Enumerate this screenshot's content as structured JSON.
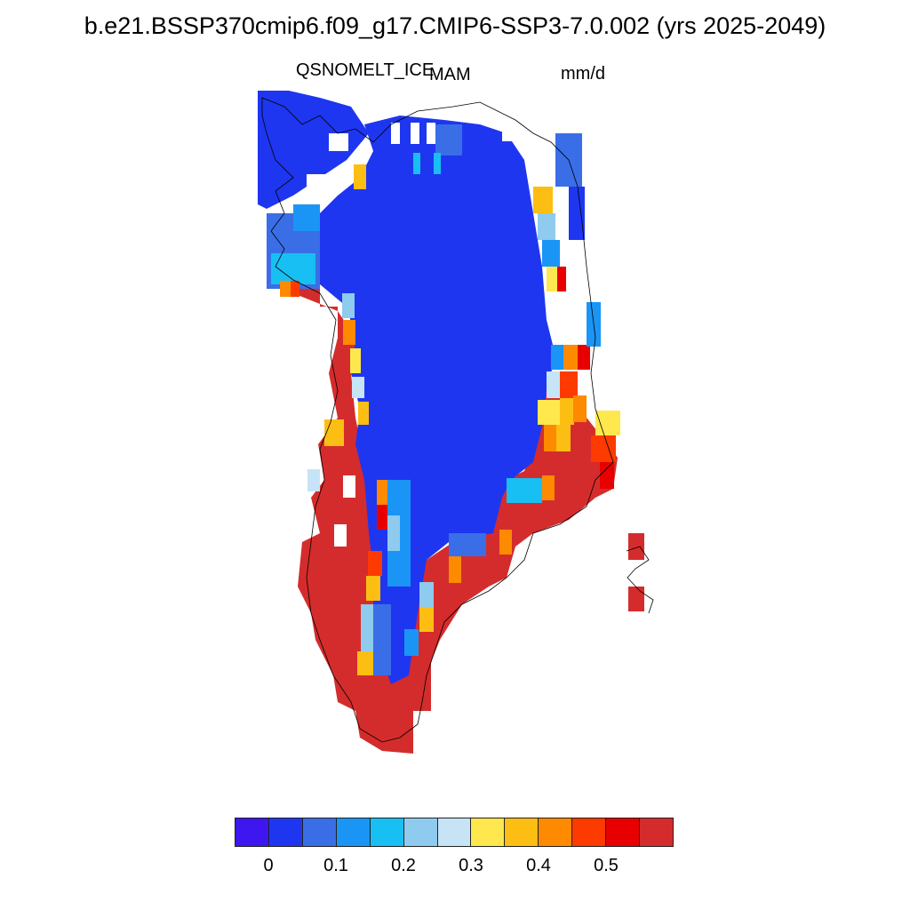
{
  "title": "b.e21.BSSP370cmip6.f09_g17.CMIP6-SSP3-7.0.002 (yrs 2025-2049)",
  "variable": "QSNOMELT_ICE",
  "season": "MAM",
  "units": "mm/d",
  "colorbar": {
    "colors": [
      "#3d16f0",
      "#1f36f0",
      "#3a6ee6",
      "#1a95f5",
      "#18bff2",
      "#8ecbee",
      "#c6e4f5",
      "#ffe84d",
      "#fdbe13",
      "#fd8a00",
      "#fd3a00",
      "#e80000",
      "#d42c2c"
    ],
    "tick_labels": [
      "0",
      "0.1",
      "0.2",
      "0.3",
      "0.4",
      "0.5"
    ]
  }
}
